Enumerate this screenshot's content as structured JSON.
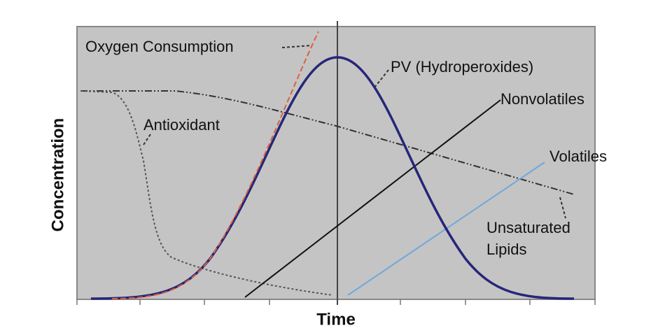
{
  "axes": {
    "y": "Concentration",
    "x": "Time"
  },
  "curves": {
    "oxygen": "Oxygen Consumption",
    "pv": "PV (Hydroperoxides)",
    "nonvolatiles": "Nonvolatiles",
    "antioxidant": "Antioxidant",
    "volatiles": "Volatiles",
    "lipids": [
      "Unsaturated",
      "Lipids"
    ]
  }
}
